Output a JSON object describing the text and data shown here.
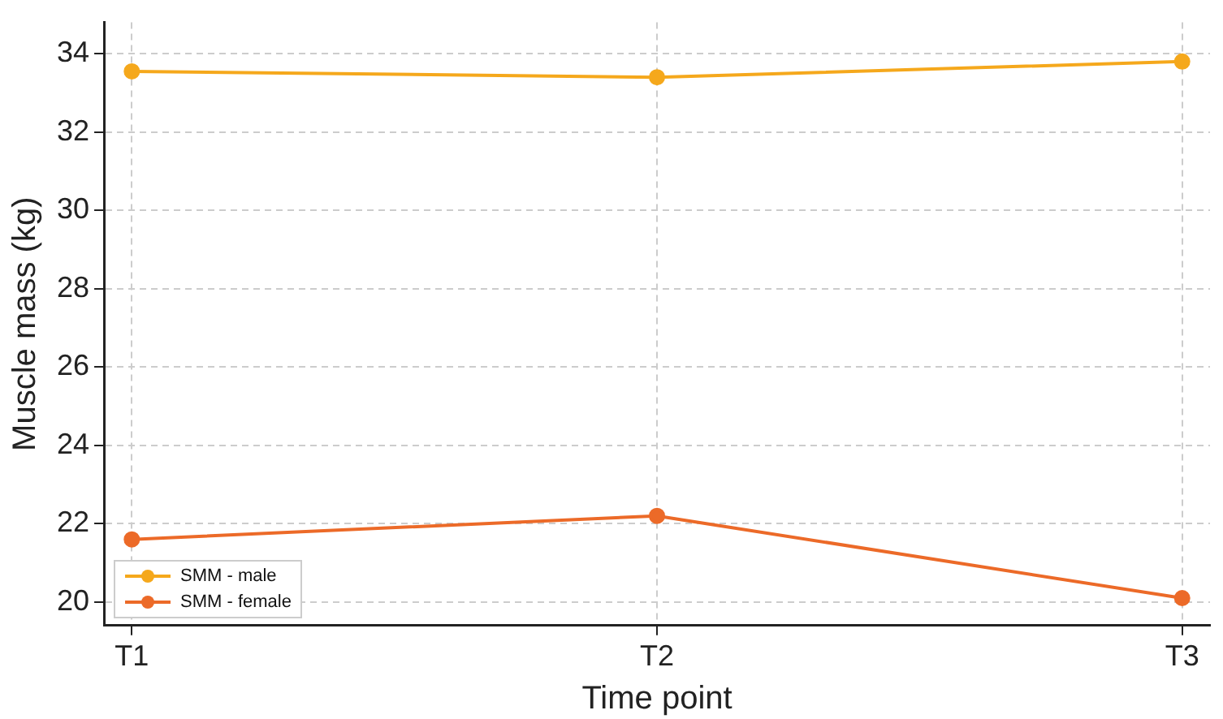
{
  "chart_data": {
    "type": "line",
    "xlabel": "Time point",
    "ylabel": "Muscle mass (kg)",
    "categories": [
      "T1",
      "T2",
      "T3"
    ],
    "series": [
      {
        "name": "SMM - male",
        "color": "#f5a81c",
        "values": [
          33.55,
          33.4,
          33.8
        ]
      },
      {
        "name": "SMM - female",
        "color": "#ec6a28",
        "values": [
          21.6,
          22.2,
          20.1
        ]
      }
    ],
    "ylim": [
      19.4,
      34.8
    ],
    "yticks": [
      20,
      22,
      24,
      26,
      28,
      30,
      32,
      34
    ],
    "grid": true,
    "legend": "bottom left",
    "marker": "circle",
    "line_style": "solid"
  }
}
